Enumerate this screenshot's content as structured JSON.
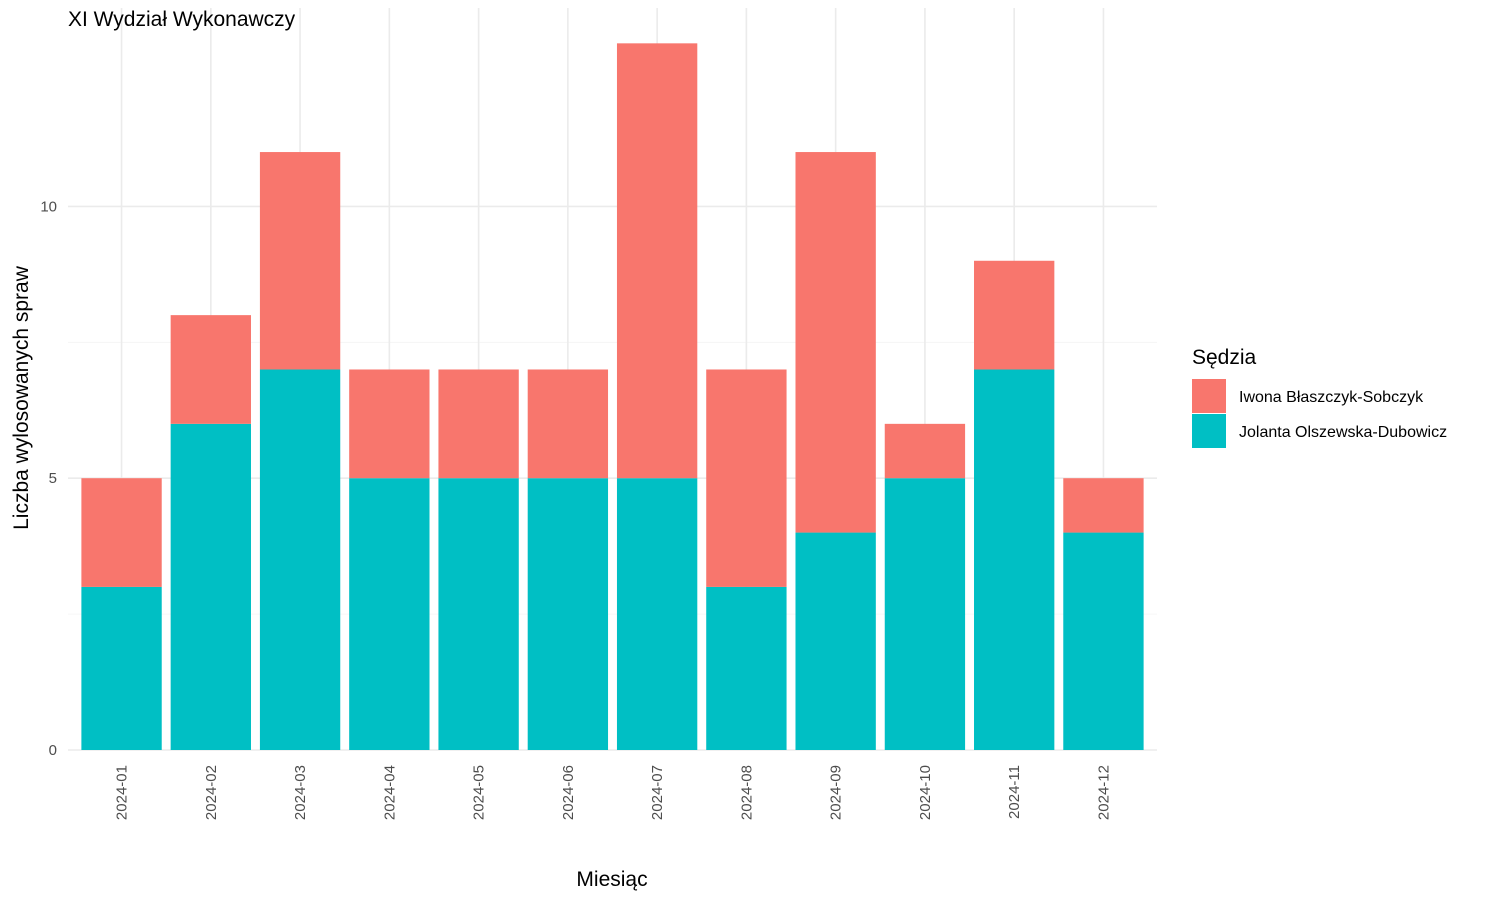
{
  "chart_data": {
    "type": "bar",
    "stacked": true,
    "title": "XI Wydział Wykonawczy",
    "xlabel": "Miesiąc",
    "ylabel": "Liczba wylosowanych spraw",
    "categories": [
      "2024-01",
      "2024-02",
      "2024-03",
      "2024-04",
      "2024-05",
      "2024-06",
      "2024-07",
      "2024-08",
      "2024-09",
      "2024-10",
      "2024-11",
      "2024-12"
    ],
    "series": [
      {
        "name": "Jolanta Olszewska-Dubowicz",
        "color": "#00BFC4",
        "values": [
          3,
          6,
          7,
          5,
          5,
          5,
          5,
          3,
          4,
          5,
          7,
          4
        ]
      },
      {
        "name": "Iwona Błaszczyk-Sobczyk",
        "color": "#F8766D",
        "values": [
          2,
          2,
          4,
          2,
          2,
          2,
          8,
          4,
          7,
          1,
          2,
          1
        ]
      }
    ],
    "ylim": [
      0,
      13.65
    ],
    "yticks": [
      0,
      5,
      10
    ],
    "grid": true,
    "legend": {
      "title": "Sędzia",
      "position": "right",
      "order": [
        "Iwona Błaszczyk-Sobczyk",
        "Jolanta Olszewska-Dubowicz"
      ]
    }
  }
}
